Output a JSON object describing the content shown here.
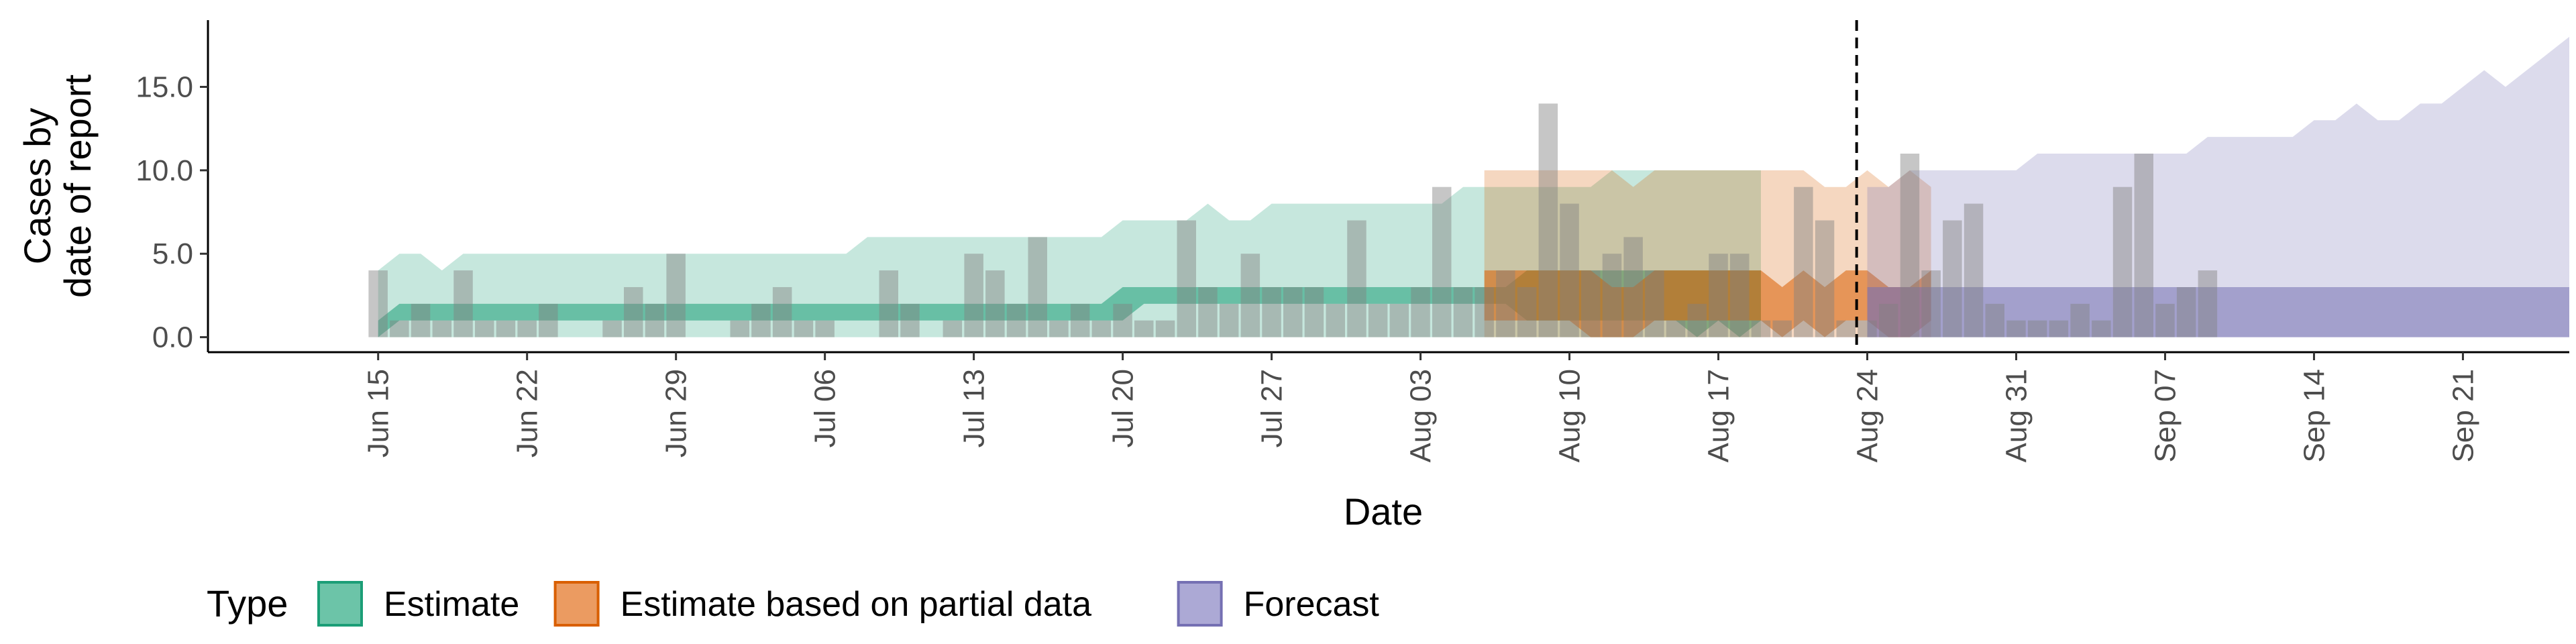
{
  "chart_data": {
    "type": "bar",
    "xlabel": "Date",
    "ylabel_lines": [
      "Cases by",
      "date of report"
    ],
    "ylim": [
      -0.9,
      19.0
    ],
    "xlim": [
      "2020-06-07",
      "2020-09-26"
    ],
    "y_ticks": [
      {
        "value": 0,
        "label": "0.0"
      },
      {
        "value": 5,
        "label": "5.0"
      },
      {
        "value": 10,
        "label": "10.0"
      },
      {
        "value": 15,
        "label": "15.0"
      }
    ],
    "x_ticks": [
      {
        "date": "2020-06-15",
        "label": "Jun 15"
      },
      {
        "date": "2020-06-22",
        "label": "Jun 22"
      },
      {
        "date": "2020-06-29",
        "label": "Jun 29"
      },
      {
        "date": "2020-07-06",
        "label": "Jul 06"
      },
      {
        "date": "2020-07-13",
        "label": "Jul 13"
      },
      {
        "date": "2020-07-20",
        "label": "Jul 20"
      },
      {
        "date": "2020-07-27",
        "label": "Jul 27"
      },
      {
        "date": "2020-08-03",
        "label": "Aug 03"
      },
      {
        "date": "2020-08-10",
        "label": "Aug 10"
      },
      {
        "date": "2020-08-17",
        "label": "Aug 17"
      },
      {
        "date": "2020-08-24",
        "label": "Aug 24"
      },
      {
        "date": "2020-08-31",
        "label": "Aug 31"
      },
      {
        "date": "2020-09-07",
        "label": "Sep 07"
      },
      {
        "date": "2020-09-14",
        "label": "Sep 14"
      },
      {
        "date": "2020-09-21",
        "label": "Sep 21"
      }
    ],
    "reported_cases": {
      "start_date": "2020-06-15",
      "values": [
        4,
        1,
        2,
        1,
        4,
        1,
        1,
        1,
        2,
        0,
        0,
        1,
        3,
        2,
        5,
        0,
        0,
        1,
        2,
        3,
        1,
        1,
        0,
        0,
        4,
        2,
        0,
        1,
        5,
        4,
        2,
        6,
        1,
        2,
        1,
        2,
        1,
        1,
        7,
        3,
        2,
        5,
        3,
        3,
        3,
        2,
        7,
        2,
        2,
        3,
        9,
        3,
        3,
        4,
        3,
        14,
        8,
        4,
        5,
        6,
        4,
        1,
        2,
        5,
        5,
        1,
        1,
        9,
        7,
        1,
        1,
        2,
        11,
        4,
        7,
        8,
        2,
        1,
        1,
        1,
        2,
        1,
        9,
        11,
        2,
        3,
        4
      ]
    },
    "reporting_cutoff_date": "2020-08-23",
    "series": [
      {
        "name": "Estimate",
        "color": "#1B9E77",
        "start_date": "2020-06-15",
        "upper90": [
          4,
          5,
          5,
          4,
          5,
          5,
          5,
          5,
          5,
          5,
          5,
          5,
          5,
          5,
          5,
          5,
          5,
          5,
          5,
          5,
          5,
          5,
          5,
          6,
          6,
          6,
          6,
          6,
          6,
          6,
          6,
          6,
          6,
          6,
          6,
          7,
          7,
          7,
          7,
          8,
          7,
          7,
          8,
          8,
          8,
          8,
          8,
          8,
          8,
          8,
          8,
          9,
          9,
          9,
          9,
          9,
          9,
          9,
          10,
          10,
          10,
          10,
          10,
          10,
          10,
          10
        ],
        "lower90": [
          0,
          0,
          0,
          0,
          0,
          0,
          0,
          0,
          0,
          0,
          0,
          0,
          0,
          0,
          0,
          0,
          0,
          0,
          0,
          0,
          0,
          0,
          0,
          0,
          0,
          0,
          0,
          0,
          0,
          0,
          0,
          0,
          0,
          0,
          0,
          0,
          0,
          0,
          0,
          0,
          0,
          0,
          0,
          0,
          0,
          0,
          0,
          0,
          0,
          0,
          0,
          0,
          0,
          0,
          0,
          0,
          0,
          0,
          0,
          0,
          0,
          0,
          0,
          0,
          0,
          0
        ],
        "upper50": [
          1,
          2,
          2,
          2,
          2,
          2,
          2,
          2,
          2,
          2,
          2,
          2,
          2,
          2,
          2,
          2,
          2,
          2,
          2,
          2,
          2,
          2,
          2,
          2,
          2,
          2,
          2,
          2,
          2,
          2,
          2,
          2,
          2,
          2,
          2,
          3,
          3,
          3,
          3,
          3,
          3,
          3,
          3,
          3,
          3,
          3,
          3,
          3,
          3,
          3,
          3,
          3,
          3,
          3,
          4,
          4,
          4,
          4,
          4,
          4,
          4,
          4,
          4,
          4,
          4,
          4
        ],
        "lower50": [
          0,
          1,
          1,
          1,
          1,
          1,
          1,
          1,
          1,
          1,
          1,
          1,
          1,
          1,
          1,
          1,
          1,
          1,
          1,
          1,
          1,
          1,
          1,
          1,
          1,
          1,
          1,
          1,
          1,
          1,
          1,
          1,
          1,
          1,
          1,
          1,
          2,
          2,
          2,
          2,
          2,
          2,
          2,
          2,
          2,
          2,
          2,
          2,
          2,
          2,
          2,
          2,
          2,
          2,
          1,
          1,
          1,
          1,
          1,
          1,
          1,
          1,
          0,
          1,
          0,
          1
        ]
      },
      {
        "name": "Estimate based on partial data",
        "color": "#D95F02",
        "start_date": "2020-08-06",
        "upper90": [
          10,
          10,
          10,
          10,
          10,
          10,
          10,
          9,
          10,
          10,
          10,
          10,
          10,
          10,
          10,
          10,
          9,
          9,
          10,
          9,
          10,
          9
        ],
        "lower90": [
          0,
          0,
          0,
          0,
          0,
          0,
          0,
          0,
          0,
          0,
          0,
          0,
          0,
          0,
          0,
          0,
          0,
          0,
          0,
          0,
          0,
          0
        ],
        "upper50": [
          4,
          4,
          4,
          4,
          4,
          4,
          3,
          3,
          4,
          4,
          4,
          4,
          4,
          4,
          3,
          4,
          3,
          4,
          4,
          3,
          3,
          4
        ],
        "lower50": [
          1,
          1,
          1,
          1,
          1,
          0,
          0,
          0,
          1,
          1,
          1,
          1,
          1,
          1,
          0,
          1,
          0,
          1,
          1,
          0,
          0,
          1
        ]
      },
      {
        "name": "Forecast",
        "color": "#7570B3",
        "start_date": "2020-08-24",
        "upper90": [
          9,
          9,
          10,
          10,
          10,
          10,
          10,
          10,
          11,
          11,
          11,
          11,
          11,
          11,
          11,
          11,
          12,
          12,
          12,
          12,
          12,
          13,
          13,
          14,
          13,
          13,
          14,
          14,
          15,
          16,
          15,
          16,
          17,
          18
        ],
        "lower90": [
          0,
          0,
          0,
          0,
          0,
          0,
          0,
          0,
          0,
          0,
          0,
          0,
          0,
          0,
          0,
          0,
          0,
          0,
          0,
          0,
          0,
          0,
          0,
          0,
          0,
          0,
          0,
          0,
          0,
          0,
          0,
          0,
          0,
          0
        ],
        "upper50": [
          3,
          3,
          3,
          3,
          3,
          3,
          3,
          3,
          3,
          3,
          3,
          3,
          3,
          3,
          3,
          3,
          3,
          3,
          3,
          3,
          3,
          3,
          3,
          3,
          3,
          3,
          3,
          3,
          3,
          3,
          3,
          3,
          3,
          3
        ],
        "lower50": [
          0,
          0,
          0,
          0,
          0,
          0,
          0,
          0,
          0,
          0,
          0,
          0,
          0,
          0,
          0,
          0,
          0,
          0,
          0,
          0,
          0,
          0,
          0,
          0,
          0,
          0,
          0,
          0,
          0,
          0,
          0,
          0,
          0,
          0
        ]
      }
    ],
    "legend": {
      "title": "Type",
      "position": "bottom-left",
      "items": [
        {
          "label": "Estimate",
          "fill": "#6CC4A8",
          "stroke": "#1B9E77"
        },
        {
          "label": "Estimate based on partial data",
          "fill": "#EB9B61",
          "stroke": "#D95F02"
        },
        {
          "label": "Forecast",
          "fill": "#ACA9D5",
          "stroke": "#7570B3"
        }
      ]
    }
  }
}
